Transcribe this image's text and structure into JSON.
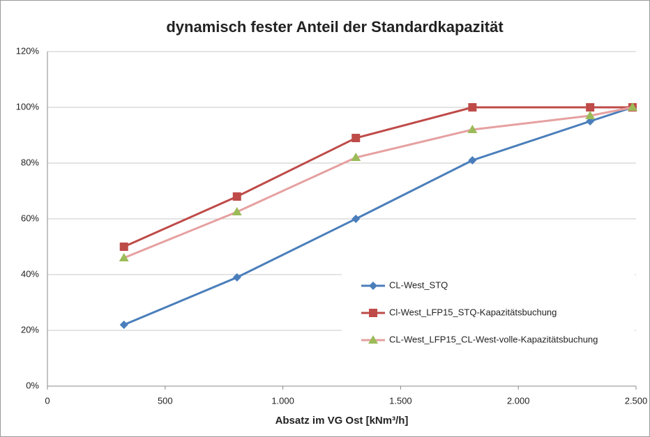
{
  "chart_data": {
    "type": "line",
    "title": "dynamisch fester Anteil der Standardkapazität",
    "x_label": "Absatz im VG Ost [kNm³/h]",
    "x": [
      325,
      805,
      1310,
      1805,
      2305,
      2485
    ],
    "series": [
      {
        "name": "CL-West_STQ",
        "color": "#4a7ebb",
        "marker": "diamond",
        "marker_color": "#4a7ebb",
        "values": [
          22,
          39,
          60,
          81,
          95,
          100
        ]
      },
      {
        "name": "Cl-West_LFP15_STQ-Kapazitätsbuchung",
        "color": "#be4b48",
        "marker": "square",
        "marker_color": "#be4b48",
        "values": [
          50,
          68,
          89,
          100,
          100,
          100
        ]
      },
      {
        "name": "CL-West_LFP15_CL-West-volle-Kapazitätsbuchung",
        "color": "#e6a0a0",
        "marker": "triangle",
        "marker_color": "#9bbb59",
        "values": [
          46,
          62.5,
          82,
          92,
          97,
          100
        ]
      }
    ],
    "xlim": [
      0,
      2500
    ],
    "xticks": [
      0,
      500,
      {
        "value": 1000,
        "label": "1.000"
      },
      {
        "value": 1500,
        "label": "1.500"
      },
      {
        "value": 2000,
        "label": "2.000"
      },
      {
        "value": 2500,
        "label": "2.500"
      }
    ],
    "ylim": [
      0,
      120
    ],
    "yticks": [
      {
        "value": 0,
        "label": "0%"
      },
      {
        "value": 20,
        "label": "20%"
      },
      {
        "value": 40,
        "label": "40%"
      },
      {
        "value": 60,
        "label": "60%"
      },
      {
        "value": 80,
        "label": "80%"
      },
      {
        "value": 100,
        "label": "100%"
      },
      {
        "value": 120,
        "label": "120%"
      }
    ],
    "grid": true,
    "legend": "right"
  }
}
